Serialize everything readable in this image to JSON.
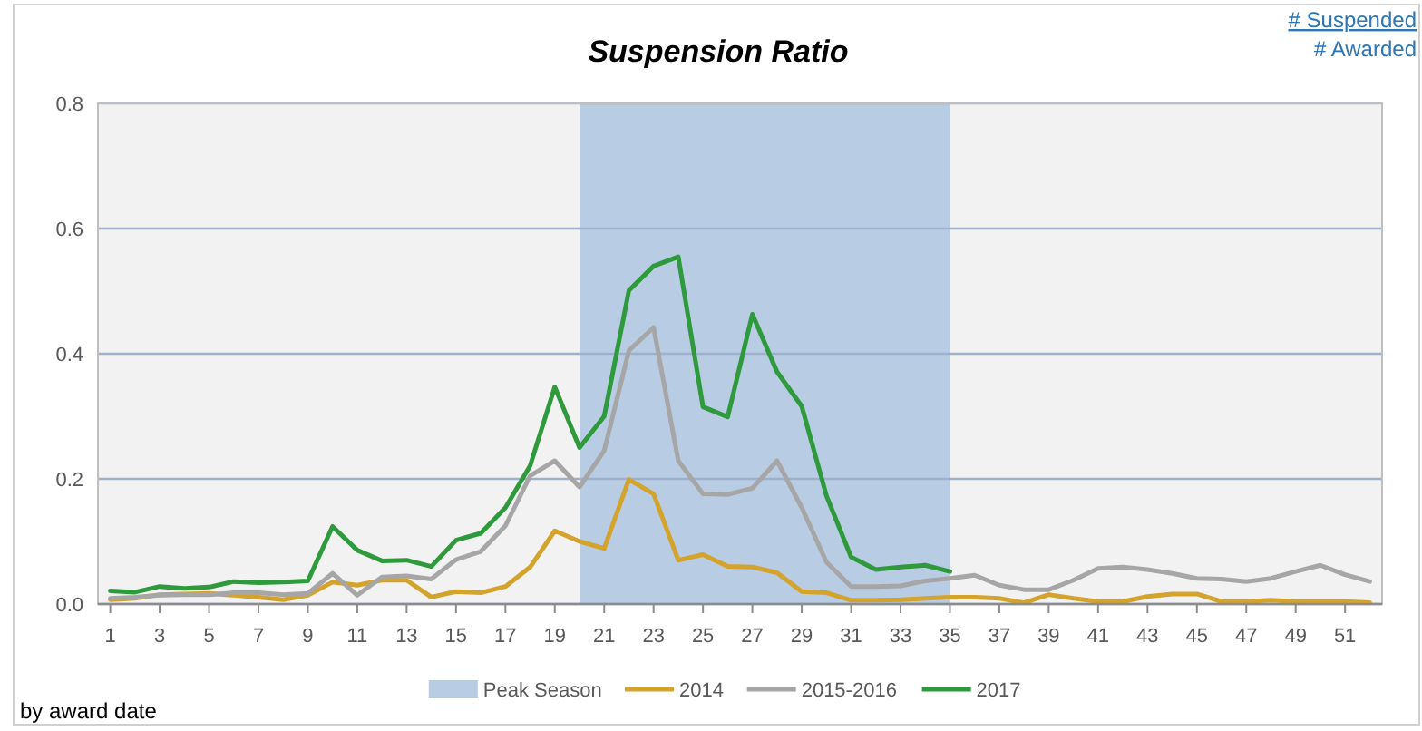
{
  "chart_data": {
    "type": "line",
    "title": "Suspension Ratio",
    "annotations": [
      "# Suspended",
      "# Awarded",
      "by award date"
    ],
    "x": [
      1,
      2,
      3,
      4,
      5,
      6,
      7,
      8,
      9,
      10,
      11,
      12,
      13,
      14,
      15,
      16,
      17,
      18,
      19,
      20,
      21,
      22,
      23,
      24,
      25,
      26,
      27,
      28,
      29,
      30,
      31,
      32,
      33,
      34,
      35,
      36,
      37,
      38,
      39,
      40,
      41,
      42,
      43,
      44,
      45,
      46,
      47,
      48,
      49,
      50,
      51,
      52
    ],
    "xlim": [
      0.5,
      52.5
    ],
    "xticks": [
      1,
      3,
      5,
      7,
      9,
      11,
      13,
      15,
      17,
      19,
      21,
      23,
      25,
      27,
      29,
      31,
      33,
      35,
      37,
      39,
      41,
      43,
      45,
      47,
      49,
      51
    ],
    "ylim": [
      0,
      0.8
    ],
    "yticks": [
      {
        "value": 0,
        "label": "0.0"
      },
      0.2,
      0.4,
      0.6,
      0.8
    ],
    "grid": "y",
    "legend": "bottom",
    "bands": [
      {
        "axis": "x",
        "from": 20,
        "to": 35,
        "label": "Peak Season",
        "color": "#b8cce4"
      }
    ],
    "series": [
      {
        "name": "2014",
        "color": "#d4a32c",
        "values": [
          0.007,
          0.009,
          0.015,
          0.016,
          0.017,
          0.014,
          0.011,
          0.007,
          0.014,
          0.035,
          0.03,
          0.038,
          0.038,
          0.011,
          0.02,
          0.018,
          0.028,
          0.059,
          0.117,
          0.1,
          0.089,
          0.199,
          0.176,
          0.07,
          0.079,
          0.06,
          0.059,
          0.05,
          0.02,
          0.018,
          0.006,
          0.006,
          0.007,
          0.009,
          0.011,
          0.011,
          0.009,
          0.002,
          0.015,
          0.009,
          0.004,
          0.004,
          0.012,
          0.016,
          0.016,
          0.004,
          0.004,
          0.006,
          0.004,
          0.004,
          0.004,
          0.002
        ]
      },
      {
        "name": "2015-2016",
        "color": "#a6a6a6",
        "values": [
          0.009,
          0.011,
          0.014,
          0.015,
          0.015,
          0.018,
          0.018,
          0.015,
          0.017,
          0.049,
          0.014,
          0.043,
          0.045,
          0.04,
          0.071,
          0.084,
          0.125,
          0.205,
          0.229,
          0.187,
          0.245,
          0.405,
          0.442,
          0.229,
          0.176,
          0.175,
          0.185,
          0.229,
          0.154,
          0.067,
          0.028,
          0.028,
          0.029,
          0.037,
          0.041,
          0.046,
          0.03,
          0.023,
          0.023,
          0.038,
          0.057,
          0.059,
          0.055,
          0.049,
          0.041,
          0.04,
          0.036,
          0.041,
          0.052,
          0.062,
          0.047,
          0.036
        ]
      },
      {
        "name": "2017",
        "color": "#2e9a3c",
        "values": [
          0.021,
          0.019,
          0.028,
          0.025,
          0.027,
          0.036,
          0.034,
          0.035,
          0.037,
          0.124,
          0.086,
          0.069,
          0.07,
          0.06,
          0.102,
          0.113,
          0.154,
          0.221,
          0.347,
          0.25,
          0.3,
          0.501,
          0.54,
          0.555,
          0.315,
          0.299,
          0.463,
          0.371,
          0.316,
          0.173,
          0.075,
          0.055,
          0.059,
          0.062,
          0.052,
          null,
          null,
          null,
          null,
          null,
          null,
          null,
          null,
          null,
          null,
          null,
          null,
          null,
          null,
          null,
          null,
          null
        ]
      }
    ]
  }
}
